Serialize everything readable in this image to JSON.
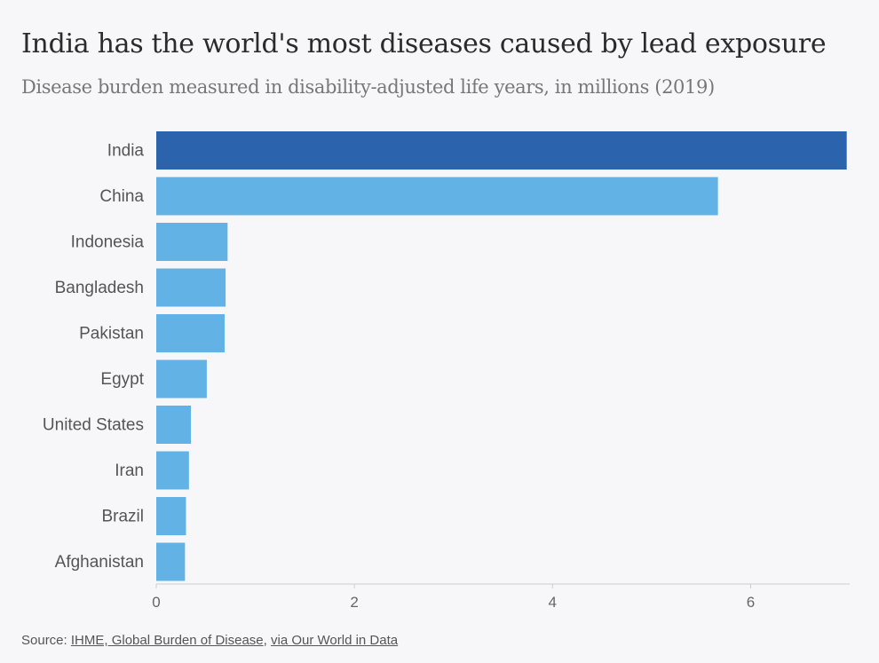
{
  "title": "India has the world's most diseases caused by lead exposure",
  "subtitle": "Disease burden measured in disability-adjusted life years, in millions (2019)",
  "source": {
    "prefix": "Source: ",
    "link1": "IHME, Global Burden of Disease",
    "sep": ", ",
    "link2": "via Our World in Data"
  },
  "colors": {
    "highlight": "#2c63ad",
    "bar": "#62b2e6",
    "axis": "#cccccc",
    "tick_text": "#666666",
    "label_text": "#555555"
  },
  "chart_data": {
    "type": "bar",
    "orientation": "horizontal",
    "title": "India has the world's most diseases caused by lead exposure",
    "subtitle": "Disease burden measured in disability-adjusted life years, in millions (2019)",
    "categories": [
      "India",
      "China",
      "Indonesia",
      "Bangladesh",
      "Pakistan",
      "Egypt",
      "United States",
      "Iran",
      "Brazil",
      "Afghanistan"
    ],
    "values": [
      6.97,
      5.67,
      0.72,
      0.7,
      0.69,
      0.51,
      0.35,
      0.33,
      0.3,
      0.29
    ],
    "highlight": "India",
    "xlim": [
      0,
      7
    ],
    "xticks": [
      0,
      2,
      4,
      6
    ],
    "grid": false
  }
}
